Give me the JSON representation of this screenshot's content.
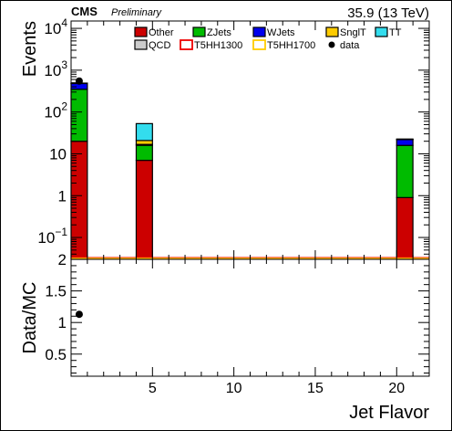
{
  "header": {
    "experiment": "CMS",
    "status": "Preliminary",
    "lumi": "35.9 (13 TeV)"
  },
  "top_panel": {
    "ylabel": "Events",
    "y_log": true,
    "ylim": [
      0.03,
      15000
    ],
    "y_ticks": [
      {
        "value": 0.1,
        "base": "10",
        "exp": "−1"
      },
      {
        "value": 1,
        "label": "1"
      },
      {
        "value": 10,
        "label": "10"
      },
      {
        "value": 100,
        "base": "10",
        "exp": "2"
      },
      {
        "value": 1000,
        "base": "10",
        "exp": "3"
      },
      {
        "value": 10000,
        "base": "10",
        "exp": "4"
      }
    ]
  },
  "bottom_panel": {
    "ylabel": "Data/MC",
    "ylim": [
      0.15,
      2.0
    ],
    "y_ticks": [
      0.5,
      1,
      1.5,
      2
    ],
    "y_tick_labels": [
      "0.5",
      "1",
      "1.5",
      "2"
    ]
  },
  "x_axis": {
    "label": "Jet Flavor",
    "xlim": [
      0,
      22
    ],
    "ticks": [
      5,
      10,
      15,
      20
    ],
    "tick_labels": [
      "5",
      "10",
      "15",
      "20"
    ]
  },
  "legend": [
    {
      "label": "Other",
      "style": "box",
      "fill": "#cc0000"
    },
    {
      "label": "ZJets",
      "style": "box",
      "fill": "#00bb00"
    },
    {
      "label": "WJets",
      "style": "box",
      "fill": "#0000ee"
    },
    {
      "label": "SnglT",
      "style": "box",
      "fill": "#ffcc00"
    },
    {
      "label": "TT",
      "style": "box",
      "fill": "#33ddee"
    },
    {
      "label": "QCD",
      "style": "box",
      "fill": "#cccccc"
    },
    {
      "label": "T5HH1300",
      "style": "line",
      "stroke": "#ee0000"
    },
    {
      "label": "T5HH1700",
      "style": "line",
      "stroke": "#ffcc00"
    },
    {
      "label": "data",
      "style": "marker",
      "fill": "#000000"
    }
  ],
  "chart_data": [
    {
      "type": "bar",
      "stacked": true,
      "title": "",
      "xlabel": "Jet Flavor",
      "ylabel": "Events",
      "y_scale": "log",
      "ylim": [
        0.03,
        15000
      ],
      "bins": [
        [
          0,
          1
        ],
        [
          4,
          5
        ],
        [
          20,
          21
        ]
      ],
      "series": [
        {
          "name": "Other",
          "color": "#cc0000",
          "values": [
            20,
            7,
            0.9
          ]
        },
        {
          "name": "ZJets",
          "color": "#00bb00",
          "values": [
            330,
            9,
            15
          ]
        },
        {
          "name": "WJets",
          "color": "#0000ee",
          "values": [
            130,
            0.8,
            6
          ]
        },
        {
          "name": "SnglT",
          "color": "#ffcc00",
          "values": [
            3,
            4,
            0.2
          ]
        },
        {
          "name": "TT",
          "color": "#33ddee",
          "values": [
            8,
            32,
            0.5
          ]
        },
        {
          "name": "QCD",
          "color": "#cccccc",
          "values": [
            0,
            0,
            0
          ]
        }
      ],
      "signal_lines": [
        {
          "name": "T5HH1300",
          "color": "#ee0000",
          "value": 0.03
        },
        {
          "name": "T5HH1700",
          "color": "#ffcc00",
          "value": 0.03
        }
      ],
      "data_points": [
        {
          "x": 0.5,
          "y": 550
        }
      ],
      "grid": false,
      "legend_position": "top"
    },
    {
      "type": "scatter",
      "title": "",
      "xlabel": "Jet Flavor",
      "ylabel": "Data/MC",
      "ylim": [
        0.15,
        2.0
      ],
      "points": [
        {
          "x": 0.5,
          "y": 1.13
        }
      ],
      "grid": false
    }
  ]
}
